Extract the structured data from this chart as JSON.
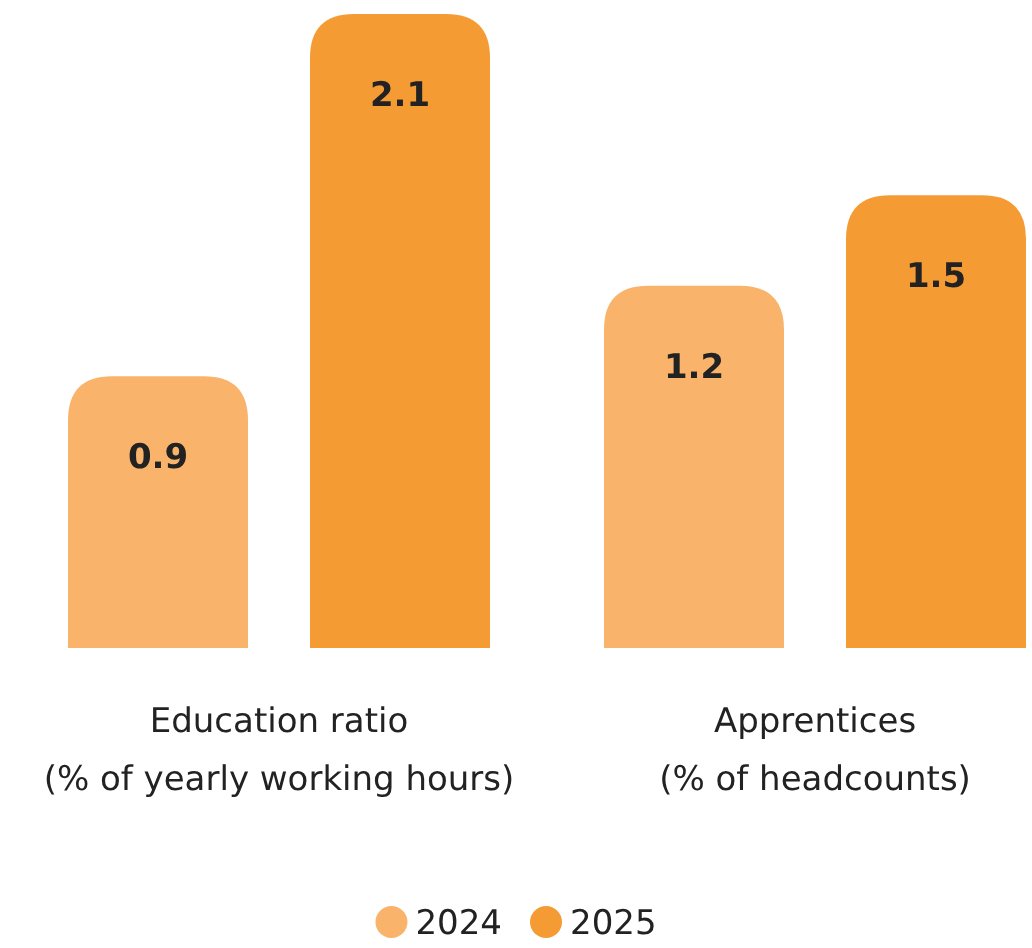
{
  "chart_data": {
    "type": "bar",
    "categories": [
      "Education ratio\n(% of yearly working hours)",
      "Apprentices\n(% of headcounts)"
    ],
    "series": [
      {
        "name": "2024",
        "color": "#f9b36a",
        "values": [
          0.9,
          1.2
        ]
      },
      {
        "name": "2025",
        "color": "#f59b34",
        "values": [
          2.1,
          1.5
        ]
      }
    ],
    "data_labels": true,
    "legend": "bottom"
  }
}
